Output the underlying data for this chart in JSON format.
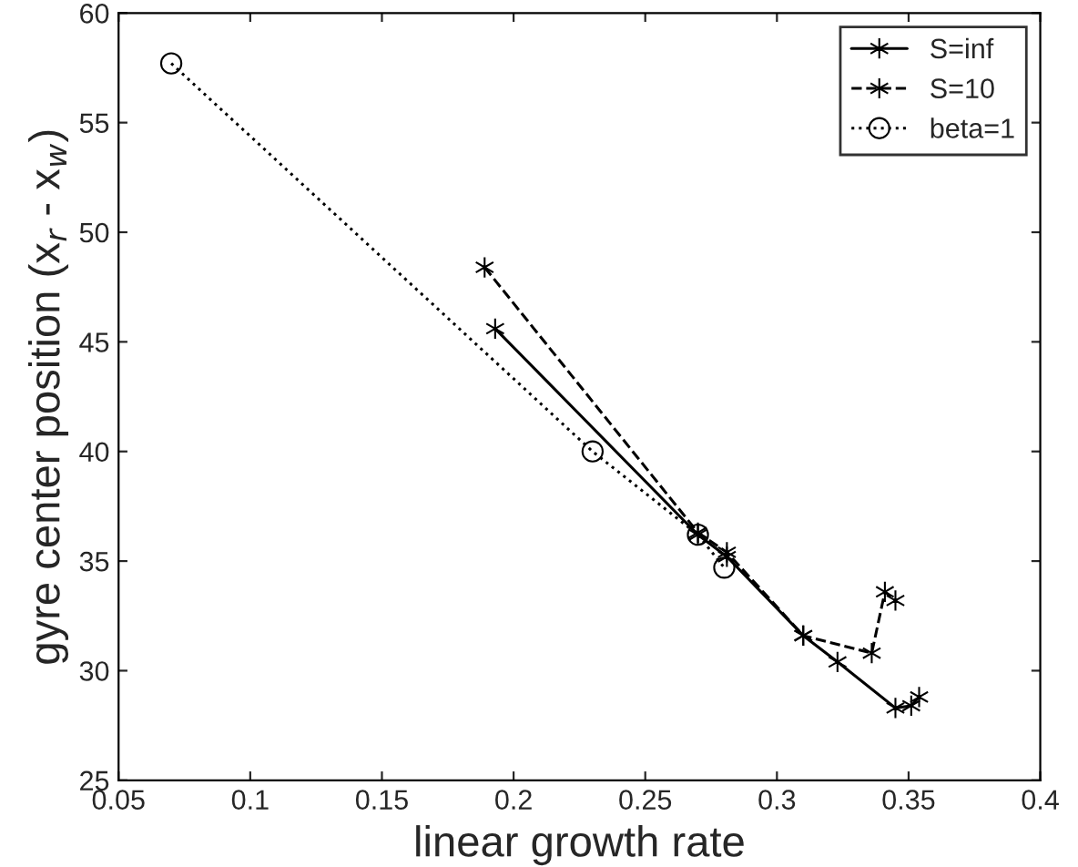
{
  "chart_data": {
    "type": "line",
    "xlabel": "linear growth rate",
    "ylabel": "gyre center position (x$_{r}$ - x$_{w}$)",
    "xlim": [
      0.05,
      0.4
    ],
    "xticks": [
      0.05,
      0.1,
      0.15,
      0.2,
      0.25,
      0.3,
      0.35,
      0.4
    ],
    "ylim": [
      25,
      60
    ],
    "yticks": [
      25,
      30,
      35,
      40,
      45,
      50,
      55,
      60
    ],
    "grid": false,
    "legend": "top right",
    "series": [
      {
        "name": "S=inf",
        "color": "#000000",
        "marker": "cross",
        "line_style": "solid",
        "x": [
          0.193,
          0.27,
          0.281,
          0.31,
          0.323,
          0.345,
          0.351,
          0.354
        ],
        "values": [
          45.6,
          36.2,
          35.2,
          31.6,
          30.4,
          28.3,
          28.4,
          28.8
        ]
      },
      {
        "name": "S=10",
        "color": "#000000",
        "marker": "cross",
        "line_style": "dashed",
        "x": [
          0.189,
          0.27,
          0.281,
          0.31,
          0.336,
          0.341,
          0.345
        ],
        "values": [
          48.4,
          36.3,
          35.4,
          31.6,
          30.8,
          33.6,
          33.2
        ]
      },
      {
        "name": "beta=1",
        "color": "#000000",
        "marker": "circle",
        "line_style": "dotted",
        "x": [
          0.07,
          0.23,
          0.27,
          0.28
        ],
        "values": [
          57.7,
          40.0,
          36.2,
          34.7
        ]
      }
    ]
  }
}
